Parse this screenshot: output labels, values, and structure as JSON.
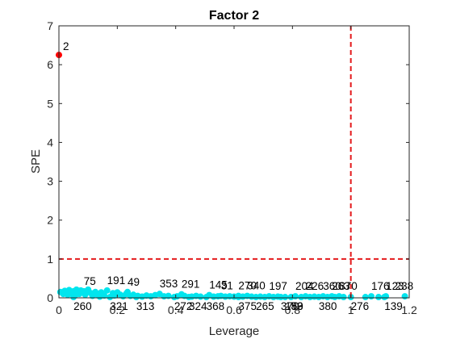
{
  "chart_data": {
    "type": "scatter",
    "title": "Factor 2",
    "xlabel": "Leverage",
    "ylabel": "SPE",
    "xlim": [
      0,
      1.2
    ],
    "ylim": [
      0,
      7
    ],
    "xticks": [
      "0",
      "0.2",
      "0.4",
      "0.6",
      "0.8",
      "1",
      "1.2"
    ],
    "yticks": [
      "0",
      "1",
      "2",
      "3",
      "4",
      "5",
      "6",
      "7"
    ],
    "grid": false,
    "legend": "none",
    "thresholds": {
      "x": 1.0,
      "y": 1.0,
      "color": "#e41a1c",
      "style": "dashed"
    },
    "outliers": [
      {
        "label": "2",
        "x": 0.0,
        "y": 6.25
      }
    ],
    "outlier_color": "#ff0000",
    "series_color": "#00e5ee",
    "points": [
      {
        "label": "260",
        "x": 0.05,
        "y": 0.02
      },
      {
        "label": "75",
        "x": 0.085,
        "y": 0.17
      },
      {
        "label": "191",
        "x": 0.165,
        "y": 0.19
      },
      {
        "label": "49",
        "x": 0.235,
        "y": 0.15
      },
      {
        "label": "321",
        "x": 0.175,
        "y": 0.02
      },
      {
        "label": "313",
        "x": 0.265,
        "y": 0.02
      },
      {
        "label": "353",
        "x": 0.345,
        "y": 0.1
      },
      {
        "label": "291",
        "x": 0.42,
        "y": 0.09
      },
      {
        "label": "272",
        "x": 0.395,
        "y": 0.02
      },
      {
        "label": "324",
        "x": 0.445,
        "y": 0.02
      },
      {
        "label": "368",
        "x": 0.505,
        "y": 0.02
      },
      {
        "label": "145",
        "x": 0.515,
        "y": 0.07
      },
      {
        "label": "31",
        "x": 0.555,
        "y": 0.05
      },
      {
        "label": "270",
        "x": 0.615,
        "y": 0.05
      },
      {
        "label": "340",
        "x": 0.645,
        "y": 0.05
      },
      {
        "label": "375",
        "x": 0.615,
        "y": 0.02
      },
      {
        "label": "265",
        "x": 0.675,
        "y": 0.02
      },
      {
        "label": "197",
        "x": 0.72,
        "y": 0.04
      },
      {
        "label": "370",
        "x": 0.76,
        "y": 0.02
      },
      {
        "label": "159",
        "x": 0.775,
        "y": 0.02
      },
      {
        "label": "83",
        "x": 0.795,
        "y": 0.02
      },
      {
        "label": "204",
        "x": 0.81,
        "y": 0.04
      },
      {
        "label": "380",
        "x": 0.89,
        "y": 0.02
      },
      {
        "label": "226",
        "x": 0.845,
        "y": 0.04
      },
      {
        "label": "360",
        "x": 0.905,
        "y": 0.04
      },
      {
        "label": "263",
        "x": 0.935,
        "y": 0.04
      },
      {
        "label": "370",
        "x": 0.96,
        "y": 0.04
      },
      {
        "label": "276",
        "x": 1.0,
        "y": 0.02
      },
      {
        "label": "176",
        "x": 1.07,
        "y": 0.04
      },
      {
        "label": "139",
        "x": 1.115,
        "y": 0.02
      },
      {
        "label": "123",
        "x": 1.12,
        "y": 0.04
      },
      {
        "label": "238",
        "x": 1.185,
        "y": 0.04
      }
    ],
    "unlabeled_points": [
      {
        "x": 0.005,
        "y": 0.15
      },
      {
        "x": 0.015,
        "y": 0.1
      },
      {
        "x": 0.02,
        "y": 0.18
      },
      {
        "x": 0.03,
        "y": 0.08
      },
      {
        "x": 0.035,
        "y": 0.2
      },
      {
        "x": 0.04,
        "y": 0.12
      },
      {
        "x": 0.05,
        "y": 0.17
      },
      {
        "x": 0.055,
        "y": 0.06
      },
      {
        "x": 0.06,
        "y": 0.21
      },
      {
        "x": 0.07,
        "y": 0.1
      },
      {
        "x": 0.075,
        "y": 0.19
      },
      {
        "x": 0.09,
        "y": 0.08
      },
      {
        "x": 0.095,
        "y": 0.16
      },
      {
        "x": 0.1,
        "y": 0.21
      },
      {
        "x": 0.11,
        "y": 0.12
      },
      {
        "x": 0.115,
        "y": 0.05
      },
      {
        "x": 0.125,
        "y": 0.15
      },
      {
        "x": 0.13,
        "y": 0.09
      },
      {
        "x": 0.14,
        "y": 0.03
      },
      {
        "x": 0.145,
        "y": 0.14
      },
      {
        "x": 0.155,
        "y": 0.06
      },
      {
        "x": 0.185,
        "y": 0.12
      },
      {
        "x": 0.19,
        "y": 0.06
      },
      {
        "x": 0.2,
        "y": 0.14
      },
      {
        "x": 0.21,
        "y": 0.08
      },
      {
        "x": 0.22,
        "y": 0.04
      },
      {
        "x": 0.23,
        "y": 0.1
      },
      {
        "x": 0.245,
        "y": 0.05
      },
      {
        "x": 0.255,
        "y": 0.08
      },
      {
        "x": 0.27,
        "y": 0.05
      },
      {
        "x": 0.285,
        "y": 0.03
      },
      {
        "x": 0.3,
        "y": 0.06
      },
      {
        "x": 0.315,
        "y": 0.04
      },
      {
        "x": 0.33,
        "y": 0.07
      },
      {
        "x": 0.36,
        "y": 0.04
      },
      {
        "x": 0.375,
        "y": 0.05
      },
      {
        "x": 0.405,
        "y": 0.04
      },
      {
        "x": 0.43,
        "y": 0.05
      },
      {
        "x": 0.455,
        "y": 0.03
      },
      {
        "x": 0.47,
        "y": 0.05
      },
      {
        "x": 0.485,
        "y": 0.03
      },
      {
        "x": 0.53,
        "y": 0.03
      },
      {
        "x": 0.545,
        "y": 0.04
      },
      {
        "x": 0.57,
        "y": 0.03
      },
      {
        "x": 0.585,
        "y": 0.04
      },
      {
        "x": 0.6,
        "y": 0.03
      },
      {
        "x": 0.63,
        "y": 0.03
      },
      {
        "x": 0.66,
        "y": 0.03
      },
      {
        "x": 0.69,
        "y": 0.03
      },
      {
        "x": 0.705,
        "y": 0.02
      },
      {
        "x": 0.735,
        "y": 0.02
      },
      {
        "x": 0.75,
        "y": 0.03
      },
      {
        "x": 0.83,
        "y": 0.02
      },
      {
        "x": 0.86,
        "y": 0.02
      },
      {
        "x": 0.875,
        "y": 0.03
      },
      {
        "x": 0.92,
        "y": 0.02
      },
      {
        "x": 0.945,
        "y": 0.02
      },
      {
        "x": 0.975,
        "y": 0.02
      },
      {
        "x": 1.05,
        "y": 0.02
      },
      {
        "x": 1.095,
        "y": 0.02
      }
    ]
  }
}
